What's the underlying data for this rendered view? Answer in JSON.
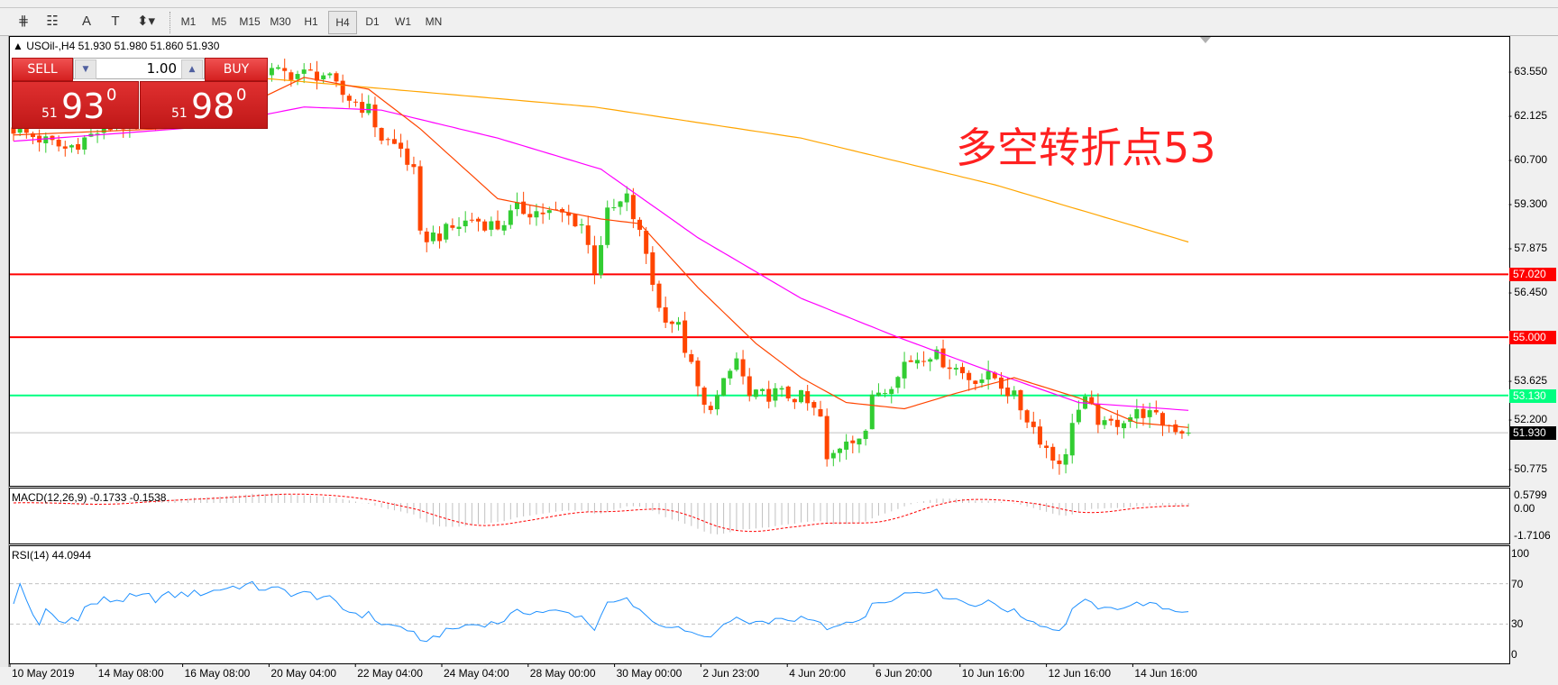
{
  "toolbar": {
    "tools": [
      {
        "name": "fibonacci-fan-icon",
        "glyph": "⋕"
      },
      {
        "name": "fibonacci-lines-icon",
        "glyph": "☷"
      },
      {
        "name": "text-icon",
        "glyph": "A"
      },
      {
        "name": "text-label-icon",
        "glyph": "T"
      },
      {
        "name": "arrows-icon",
        "glyph": "⬍▾"
      }
    ],
    "timeframes": [
      "M1",
      "M5",
      "M15",
      "M30",
      "H1",
      "H4",
      "D1",
      "W1",
      "MN"
    ],
    "active_timeframe": "H4"
  },
  "chart": {
    "symbol_line": "USOil-,H4  51.930 51.980 51.860 51.930",
    "annotation": "多空转折点53",
    "price_ticks": [
      "63.550",
      "62.125",
      "60.700",
      "59.300",
      "57.875",
      "56.450",
      "53.625",
      "52.200",
      "50.775"
    ],
    "levels": [
      {
        "value": "57.020",
        "color": "#ff0000"
      },
      {
        "value": "55.000",
        "color": "#ff0000"
      },
      {
        "value": "53.130",
        "color": "#00ff80"
      },
      {
        "value": "51.930",
        "color": "#000000",
        "line_color": "#c0c0c0"
      }
    ],
    "time_labels": [
      "10 May 2019",
      "14 May 08:00",
      "16 May 08:00",
      "20 May 04:00",
      "22 May 04:00",
      "24 May 04:00",
      "28 May 00:00",
      "30 May 00:00",
      "2 Jun 23:00",
      "4 Jun 20:00",
      "6 Jun 20:00",
      "10 Jun 16:00",
      "12 Jun 16:00",
      "14 Jun 16:00"
    ]
  },
  "trade_panel": {
    "sell_label": "SELL",
    "buy_label": "BUY",
    "lot": "1.00",
    "sell_price": {
      "big": "51",
      "pips": "93",
      "frac": "0"
    },
    "buy_price": {
      "big": "51",
      "pips": "98",
      "frac": "0"
    }
  },
  "macd": {
    "label": "MACD(12,26,9) -0.1733 -0.1538",
    "ticks": [
      "0.5799",
      "0.00",
      "-1.7106"
    ],
    "histogram_color": "#c0c0c0",
    "signal_color": "#ff0000"
  },
  "rsi": {
    "label": "RSI(14) 44.0944",
    "ticks": [
      "100",
      "70",
      "30",
      "0"
    ],
    "line_color": "#1e90ff"
  },
  "chart_data": {
    "type": "candlestick",
    "bars": 183,
    "ylim": [
      50.775,
      63.55
    ],
    "bull_color": "#32cd32",
    "bear_color": "#ff4500",
    "close_path": [
      [
        0,
        61.7
      ],
      [
        8,
        61.05
      ],
      [
        14,
        61.7
      ],
      [
        22,
        62.0
      ],
      [
        29,
        62.65
      ],
      [
        37,
        63.55
      ],
      [
        45,
        63.45
      ],
      [
        48,
        63.45
      ],
      [
        51,
        62.8
      ],
      [
        55,
        62.3
      ],
      [
        57,
        61.4
      ],
      [
        60,
        61.05
      ],
      [
        62,
        60.25
      ],
      [
        63,
        58.2
      ],
      [
        66,
        58.3
      ],
      [
        71,
        58.8
      ],
      [
        75,
        58.55
      ],
      [
        78,
        59.1
      ],
      [
        85,
        58.95
      ],
      [
        88,
        58.65
      ],
      [
        90,
        57.2
      ],
      [
        92,
        58.95
      ],
      [
        95,
        59.45
      ],
      [
        98,
        57.7
      ],
      [
        100,
        55.9
      ],
      [
        103,
        55.3
      ],
      [
        105,
        54.0
      ],
      [
        107,
        52.7
      ],
      [
        109,
        53.05
      ],
      [
        112,
        54.3
      ],
      [
        114,
        53.05
      ],
      [
        118,
        53.2
      ],
      [
        122,
        53.05
      ],
      [
        125,
        52.4
      ],
      [
        126,
        50.95
      ],
      [
        129,
        51.8
      ],
      [
        132,
        51.8
      ],
      [
        133,
        53.2
      ],
      [
        137,
        53.7
      ],
      [
        138,
        54.2
      ],
      [
        142,
        54.5
      ],
      [
        146,
        54.0
      ],
      [
        148,
        53.7
      ],
      [
        152,
        53.7
      ],
      [
        155,
        53.05
      ],
      [
        158,
        52.1
      ],
      [
        161,
        51.1
      ],
      [
        163,
        51.1
      ],
      [
        164,
        52.4
      ],
      [
        166,
        52.9
      ],
      [
        169,
        52.1
      ],
      [
        172,
        52.4
      ],
      [
        175,
        52.6
      ],
      [
        178,
        52.25
      ],
      [
        182,
        51.93
      ]
    ],
    "ma_fast": {
      "color": "#ff4500",
      "path": [
        [
          0,
          61.5
        ],
        [
          29,
          61.75
        ],
        [
          45,
          63.35
        ],
        [
          55,
          62.97
        ],
        [
          63,
          61.7
        ],
        [
          75,
          59.45
        ],
        [
          91,
          58.8
        ],
        [
          97,
          58.65
        ],
        [
          106,
          56.6
        ],
        [
          115,
          54.8
        ],
        [
          122,
          53.7
        ],
        [
          129,
          52.9
        ],
        [
          138,
          52.7
        ],
        [
          146,
          53.2
        ],
        [
          155,
          53.7
        ],
        [
          165,
          53.05
        ],
        [
          174,
          52.25
        ],
        [
          182,
          52.1
        ]
      ]
    },
    "ma_mid": {
      "color": "#ff00ff",
      "path": [
        [
          0,
          61.3
        ],
        [
          29,
          61.75
        ],
        [
          45,
          62.4
        ],
        [
          57,
          62.3
        ],
        [
          75,
          61.4
        ],
        [
          91,
          60.4
        ],
        [
          106,
          58.2
        ],
        [
          122,
          56.25
        ],
        [
          137,
          55.0
        ],
        [
          152,
          53.85
        ],
        [
          165,
          52.9
        ],
        [
          182,
          52.65
        ]
      ]
    },
    "ma_slow": {
      "color": "#ffa500",
      "path": [
        [
          0,
          63.7
        ],
        [
          40,
          63.3
        ],
        [
          90,
          62.4
        ],
        [
          122,
          61.4
        ],
        [
          152,
          59.9
        ],
        [
          183,
          58.0
        ]
      ]
    }
  }
}
